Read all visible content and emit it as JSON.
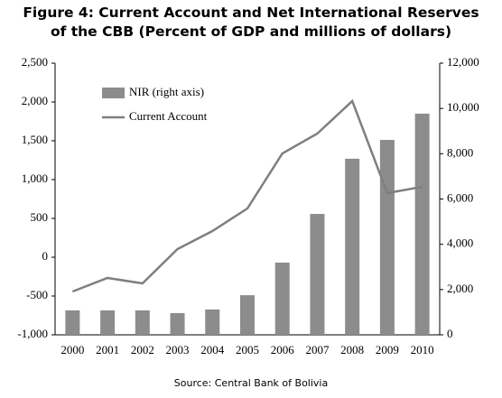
{
  "chart_data": {
    "type": "bar",
    "title": "Figure  4: Current Account and Net International Reserves of the CBB (Percent of GDP and millions of dollars)",
    "source": "Source: Central Bank of Bolivia",
    "categories": [
      "2000",
      "2001",
      "2002",
      "2003",
      "2004",
      "2005",
      "2006",
      "2007",
      "2008",
      "2009",
      "2010"
    ],
    "series": [
      {
        "name": "NIR (right axis)",
        "type": "bar",
        "axis": "y2",
        "color": "#8c8c8c",
        "values": [
          1080,
          1080,
          1080,
          960,
          1120,
          1750,
          3190,
          5340,
          7780,
          8610,
          9770
        ]
      },
      {
        "name": "Current Account",
        "type": "line",
        "color": "#7f7f7f",
        "values": [
          -442,
          -267,
          -337,
          105,
          337,
          628,
          1337,
          1593,
          2012,
          826,
          907
        ]
      }
    ],
    "ylim": [
      -1000,
      2500
    ],
    "yticks": [
      {
        "value": -1000,
        "label": "-1,000"
      },
      -500,
      0,
      500,
      {
        "value": 1000,
        "label": "1,000"
      },
      {
        "value": 1500,
        "label": "1,500"
      },
      {
        "value": 2000,
        "label": "2,000"
      },
      {
        "value": 2500,
        "label": "2,500"
      }
    ],
    "y2lim": [
      0,
      12000
    ],
    "y2ticks": [
      0,
      {
        "value": 2000,
        "label": "2,000"
      },
      {
        "value": 4000,
        "label": "4,000"
      },
      {
        "value": 6000,
        "label": "6,000"
      },
      {
        "value": 8000,
        "label": "8,000"
      },
      {
        "value": 10000,
        "label": "10,000"
      },
      {
        "value": 12000,
        "label": "12,000"
      }
    ],
    "legend": "upper left"
  }
}
